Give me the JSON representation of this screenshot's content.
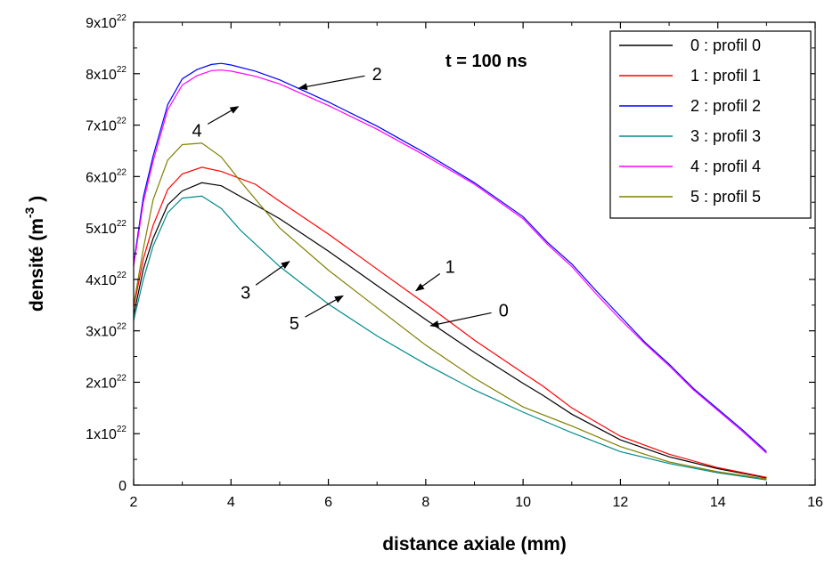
{
  "chart_data": {
    "type": "line",
    "annotation": "t = 100 ns",
    "xlabel": "distance axiale (mm)",
    "ylabel": "densité (m",
    "ylabel_sup": "-3",
    "ylabel_close": ")",
    "xlim": [
      2,
      16
    ],
    "ylim": [
      0,
      9
    ],
    "y_exponent_suffix": "x10",
    "y_exponent": "22",
    "x_ticks": [
      2,
      4,
      6,
      8,
      10,
      12,
      14,
      16
    ],
    "y_ticks": [
      0,
      1,
      2,
      3,
      4,
      5,
      6,
      7,
      8,
      9
    ],
    "legend_position": "top-right",
    "series": [
      {
        "name": "0 : profil 0",
        "color": "#000000",
        "x": [
          2,
          2.2,
          2.4,
          2.7,
          3.0,
          3.4,
          3.8,
          4.5,
          5,
          6,
          7,
          8,
          9,
          10,
          10.4,
          11,
          12,
          13,
          14,
          15
        ],
        "y": [
          3.3,
          4.2,
          4.8,
          5.45,
          5.72,
          5.88,
          5.82,
          5.45,
          5.18,
          4.55,
          3.88,
          3.22,
          2.58,
          1.98,
          1.75,
          1.38,
          0.88,
          0.55,
          0.32,
          0.14
        ]
      },
      {
        "name": "1 : profil 1",
        "color": "#ff0000",
        "x": [
          2,
          2.2,
          2.4,
          2.7,
          3.0,
          3.4,
          3.8,
          4.5,
          5,
          6,
          7,
          8,
          9,
          10,
          10.4,
          11,
          12,
          13,
          14,
          15
        ],
        "y": [
          3.45,
          4.4,
          5.05,
          5.75,
          6.05,
          6.18,
          6.1,
          5.85,
          5.52,
          4.88,
          4.2,
          3.52,
          2.82,
          2.18,
          1.93,
          1.5,
          0.95,
          0.6,
          0.34,
          0.15
        ]
      },
      {
        "name": "2 : profil 2",
        "color": "#0000ff",
        "x": [
          2,
          2.2,
          2.4,
          2.7,
          3.0,
          3.3,
          3.6,
          3.8,
          4.0,
          4.5,
          5,
          6,
          7,
          8,
          9,
          10,
          10.5,
          11,
          11.5,
          12,
          12.5,
          13,
          13.5,
          14,
          14.5,
          15
        ],
        "y": [
          4.3,
          5.6,
          6.4,
          7.4,
          7.9,
          8.08,
          8.18,
          8.2,
          8.17,
          8.05,
          7.88,
          7.45,
          6.98,
          6.45,
          5.88,
          5.22,
          4.72,
          4.3,
          3.78,
          3.28,
          2.78,
          2.35,
          1.88,
          1.48,
          1.08,
          0.65
        ]
      },
      {
        "name": "3 : profil 3",
        "color": "#008b8b",
        "x": [
          2,
          2.2,
          2.4,
          2.7,
          3.0,
          3.4,
          3.8,
          4.2,
          5,
          6,
          7,
          8,
          9,
          10,
          11,
          12,
          13,
          14,
          15
        ],
        "y": [
          3.2,
          4.0,
          4.65,
          5.3,
          5.58,
          5.62,
          5.38,
          4.95,
          4.25,
          3.52,
          2.9,
          2.35,
          1.85,
          1.42,
          1.02,
          0.65,
          0.42,
          0.24,
          0.1
        ]
      },
      {
        "name": "4 : profil 4",
        "color": "#ff00ff",
        "x": [
          2,
          2.2,
          2.4,
          2.7,
          3.0,
          3.3,
          3.6,
          3.8,
          4.0,
          4.5,
          5,
          6,
          7,
          8,
          9,
          10,
          10.5,
          11,
          11.5,
          12,
          12.5,
          13,
          13.5,
          14,
          14.5,
          15
        ],
        "y": [
          4.25,
          5.5,
          6.3,
          7.3,
          7.78,
          7.96,
          8.06,
          8.07,
          8.05,
          7.95,
          7.8,
          7.38,
          6.92,
          6.4,
          5.85,
          5.18,
          4.68,
          4.25,
          3.72,
          3.22,
          2.75,
          2.32,
          1.85,
          1.45,
          1.05,
          0.62
        ]
      },
      {
        "name": "5 : profil 5",
        "color": "#808000",
        "x": [
          2,
          2.2,
          2.4,
          2.7,
          3.0,
          3.4,
          3.8,
          4.2,
          5,
          6,
          7,
          8,
          9,
          10,
          11,
          12,
          13,
          14,
          15
        ],
        "y": [
          3.5,
          4.6,
          5.55,
          6.32,
          6.62,
          6.65,
          6.38,
          5.9,
          5.0,
          4.18,
          3.45,
          2.72,
          2.08,
          1.52,
          1.15,
          0.75,
          0.45,
          0.26,
          0.12
        ]
      }
    ],
    "curve_labels": [
      {
        "text": "2",
        "lx": 7.0,
        "ly": 8.0,
        "ax": 5.4,
        "ay": 7.72
      },
      {
        "text": "4",
        "lx": 3.3,
        "ly": 6.9,
        "ax": 4.15,
        "ay": 7.36
      },
      {
        "text": "1",
        "lx": 8.5,
        "ly": 4.25,
        "ax": 7.8,
        "ay": 3.78
      },
      {
        "text": "0",
        "lx": 9.6,
        "ly": 3.4,
        "ax": 8.1,
        "ay": 3.1
      },
      {
        "text": "3",
        "lx": 4.3,
        "ly": 3.75,
        "ax": 5.2,
        "ay": 4.35
      },
      {
        "text": "5",
        "lx": 5.3,
        "ly": 3.15,
        "ax": 6.3,
        "ay": 3.68
      }
    ]
  }
}
